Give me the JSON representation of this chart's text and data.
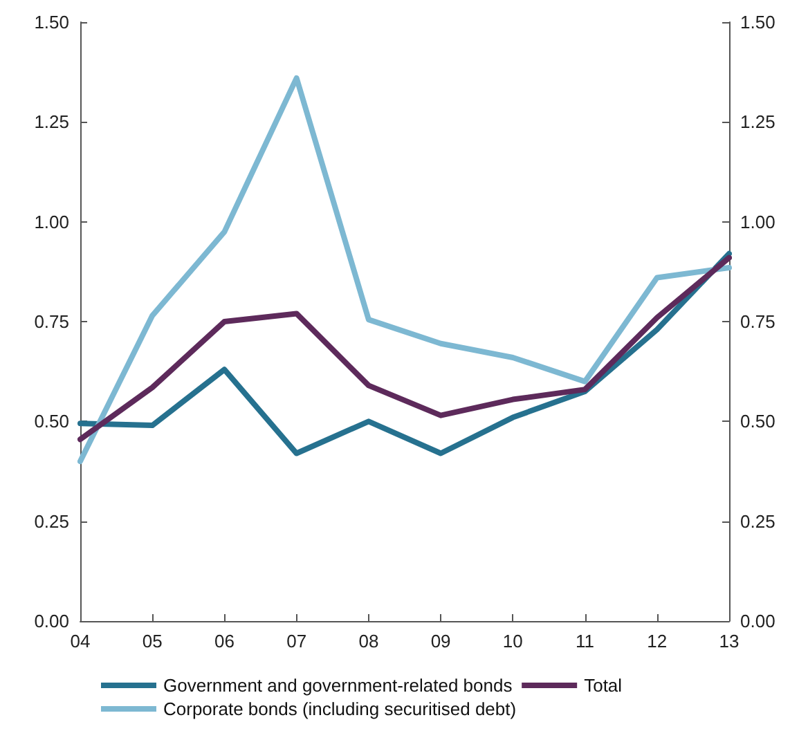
{
  "chart_data": {
    "type": "line",
    "categories": [
      "04",
      "05",
      "06",
      "07",
      "08",
      "09",
      "10",
      "11",
      "12",
      "13"
    ],
    "series": [
      {
        "name": "Government and government-related bonds",
        "color": "#26718f",
        "values": [
          0.495,
          0.49,
          0.63,
          0.42,
          0.5,
          0.42,
          0.51,
          0.575,
          0.73,
          0.92
        ]
      },
      {
        "name": "Corporate bonds (including securitised debt)",
        "color": "#7db8d2",
        "values": [
          0.4,
          0.765,
          0.975,
          1.36,
          0.755,
          0.695,
          0.66,
          0.6,
          0.86,
          0.885
        ]
      },
      {
        "name": "Total",
        "color": "#5d2a5b",
        "values": [
          0.455,
          0.585,
          0.75,
          0.77,
          0.59,
          0.515,
          0.555,
          0.58,
          0.76,
          0.91
        ]
      }
    ],
    "ylim": [
      0,
      1.5
    ],
    "yticks": [
      {
        "value": 0,
        "label": "0.00"
      },
      {
        "value": 0.25,
        "label": "0.25"
      },
      {
        "value": 0.5,
        "label": "0.50"
      },
      {
        "value": 0.75,
        "label": "0.75"
      },
      {
        "value": 1,
        "label": "1.00"
      },
      {
        "value": 1.25,
        "label": "1.25"
      },
      {
        "value": 1.5,
        "label": "1.50"
      }
    ],
    "y2lim": [
      0,
      1.5
    ],
    "y2ticks": [
      {
        "value": 0,
        "label": "0.00"
      },
      {
        "value": 0.25,
        "label": "0.25"
      },
      {
        "value": 0.5,
        "label": "0.50"
      },
      {
        "value": 0.75,
        "label": "0.75"
      },
      {
        "value": 1,
        "label": "1.00"
      },
      {
        "value": 1.25,
        "label": "1.25"
      },
      {
        "value": 1.5,
        "label": "1.50"
      }
    ],
    "grid": false,
    "legend": "bottom",
    "marker": "none",
    "line_style": "solid"
  }
}
